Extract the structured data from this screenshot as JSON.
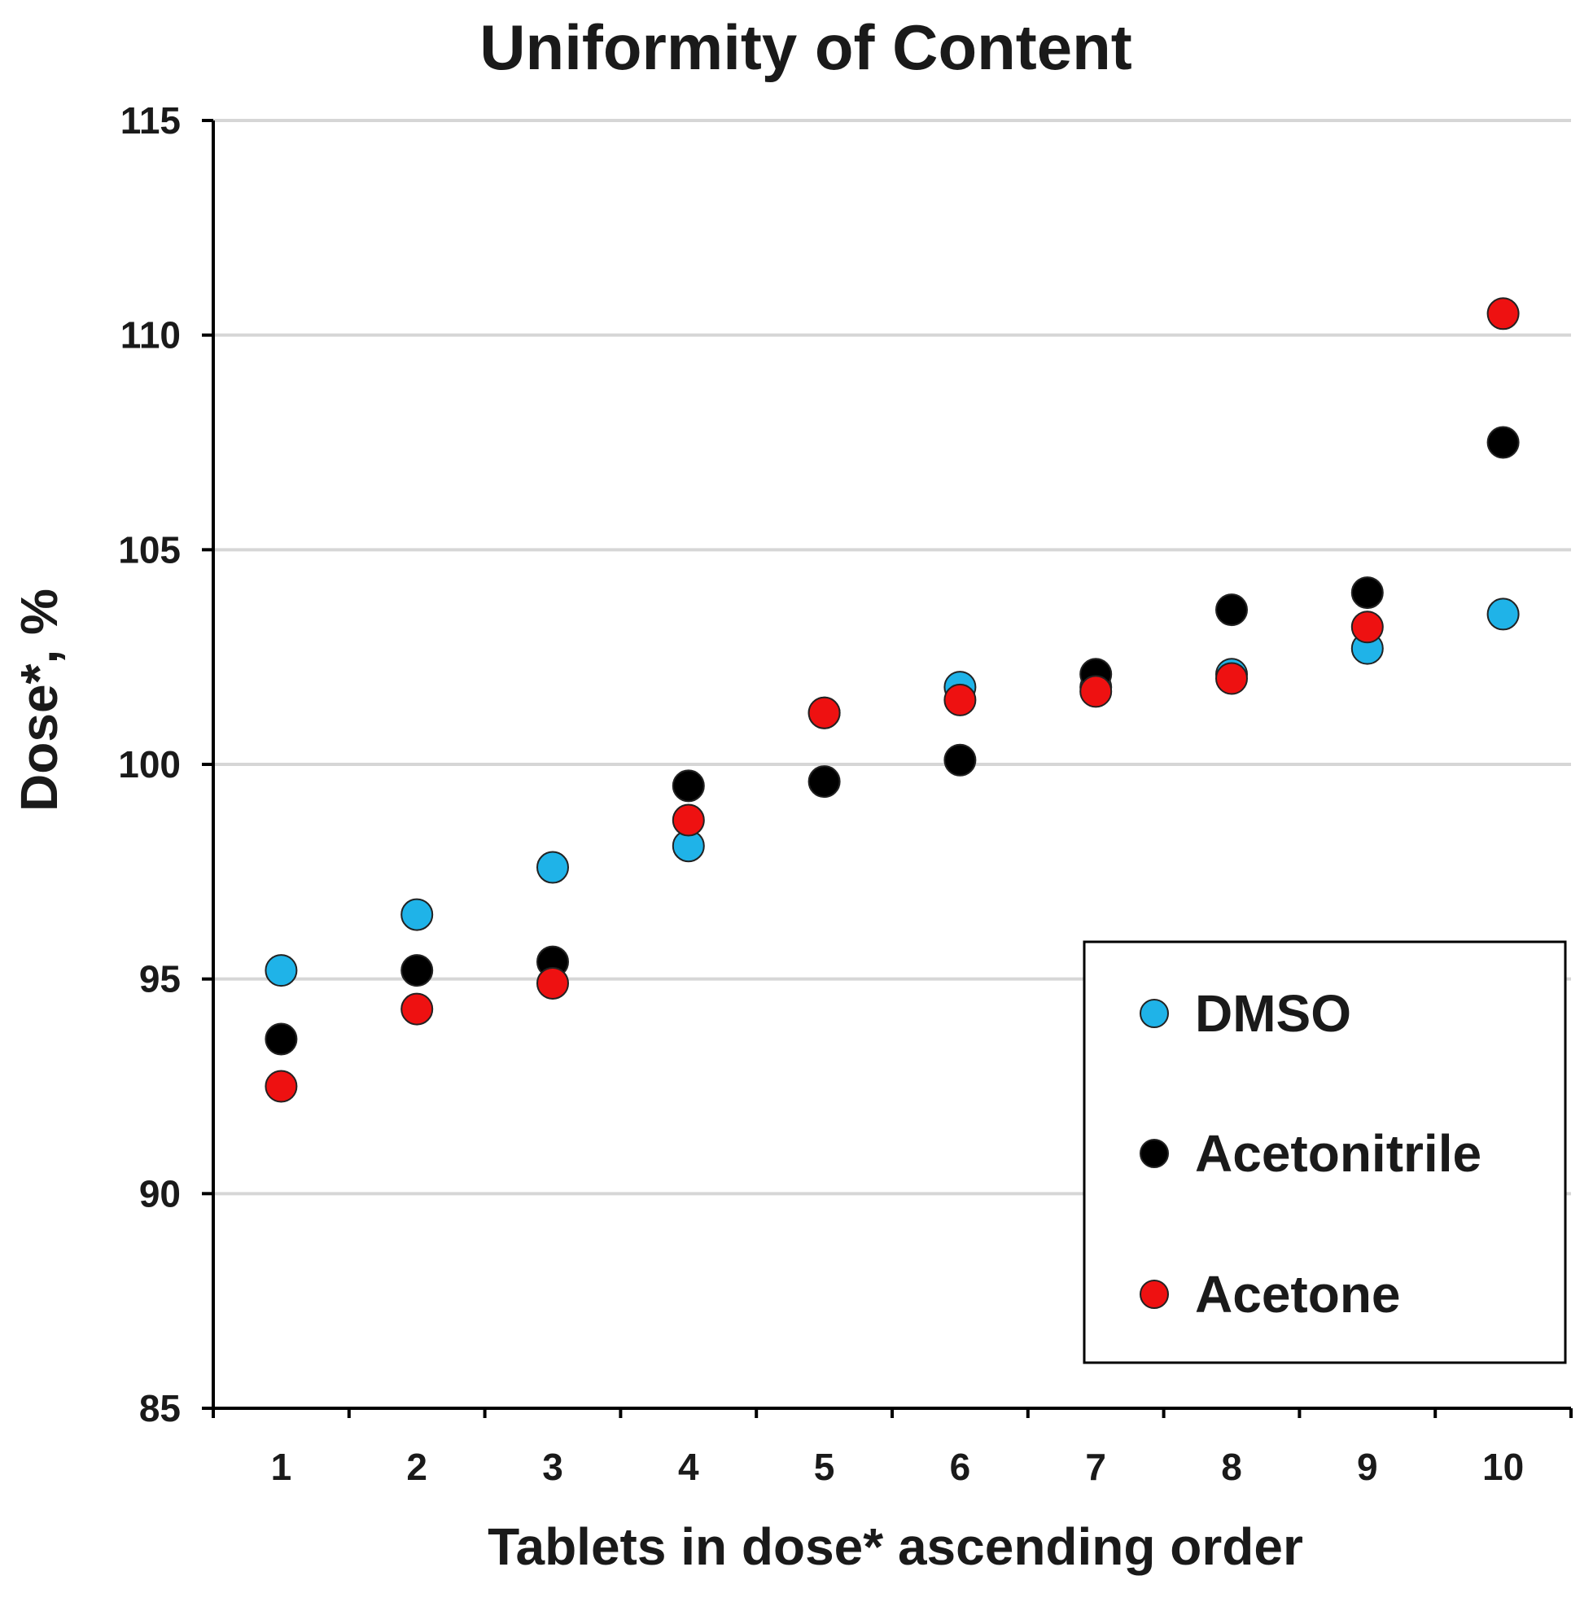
{
  "chart_data": {
    "type": "scatter",
    "title": "Uniformity of Content",
    "xlabel": "Tablets in dose* ascending order",
    "ylabel": "Dose*, %",
    "x": [
      1,
      2,
      3,
      4,
      5,
      6,
      7,
      8,
      9,
      10
    ],
    "xtick_labels": [
      "1",
      "2",
      "3",
      "4",
      "5",
      "6",
      "7",
      "8",
      "9",
      "10"
    ],
    "ylim": [
      85,
      115
    ],
    "yticks": [
      85,
      90,
      95,
      100,
      105,
      110,
      115
    ],
    "ytick_labels": [
      "85",
      "90",
      "95",
      "100",
      "105",
      "110",
      "115"
    ],
    "grid": "horizontal",
    "legend_position": "lower-right",
    "series": [
      {
        "name": "DMSO",
        "color": "#1fb3e8",
        "values": [
          95.2,
          96.5,
          97.6,
          98.1,
          101.2,
          101.8,
          101.8,
          102.1,
          102.7,
          103.5
        ]
      },
      {
        "name": "Acetonitrile",
        "color": "#000000",
        "values": [
          93.6,
          95.2,
          95.4,
          99.5,
          99.6,
          100.1,
          102.1,
          103.6,
          104.0,
          107.5
        ]
      },
      {
        "name": "Acetone",
        "color": "#ee1111",
        "values": [
          92.5,
          94.3,
          94.9,
          98.7,
          101.2,
          101.5,
          101.7,
          102.0,
          103.2,
          110.5
        ]
      }
    ]
  }
}
